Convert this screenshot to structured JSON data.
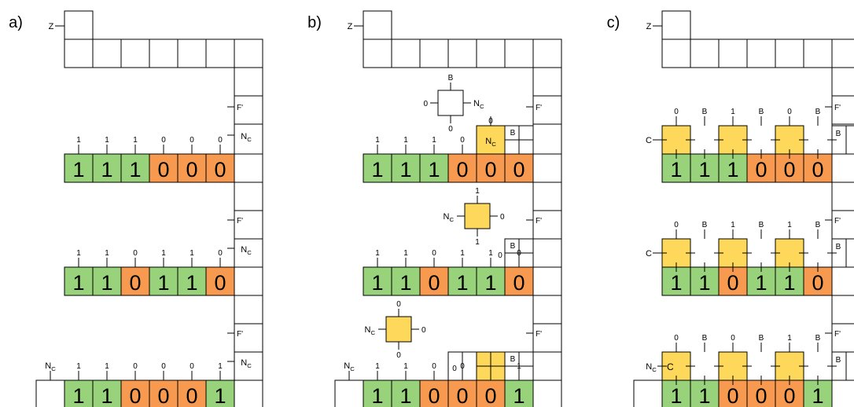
{
  "colors": {
    "green": "#98d27b",
    "orange": "#f79a4f",
    "yellow": "#fdd85a",
    "line": "#000000"
  },
  "panels": [
    {
      "label": "a)",
      "seed_label": "Z",
      "rows": [
        {
          "bits": [
            "1",
            "1",
            "1",
            "0",
            "0",
            "0"
          ],
          "top_labels": [
            "1",
            "1",
            "1",
            "0",
            "0",
            "0"
          ],
          "f_label": "F'",
          "nc_label": "N",
          "nc_sub": "C",
          "left_label": ""
        },
        {
          "bits": [
            "1",
            "1",
            "0",
            "1",
            "1",
            "0"
          ],
          "top_labels": [
            "1",
            "1",
            "0",
            "1",
            "1",
            "0"
          ],
          "f_label": "F'",
          "nc_label": "N",
          "nc_sub": "C",
          "left_label": ""
        },
        {
          "bits": [
            "1",
            "1",
            "0",
            "0",
            "0",
            "1"
          ],
          "top_labels": [
            "1",
            "1",
            "0",
            "0",
            "0",
            "1"
          ],
          "f_label": "F'",
          "nc_label": "N",
          "nc_sub": "C",
          "left_label": "N",
          "left_sub": "C"
        }
      ]
    },
    {
      "label": "b)",
      "seed_label": "Z",
      "rows": [
        {
          "bits": [
            "1",
            "1",
            "1",
            "0",
            "0",
            "0"
          ],
          "top_labels": [
            "1",
            "1",
            "1",
            "0",
            "N",
            "B"
          ],
          "f_label": "F'"
        },
        {
          "bits": [
            "1",
            "1",
            "0",
            "1",
            "1",
            "0"
          ],
          "top_labels": [
            "1",
            "1",
            "0",
            "1",
            "1",
            "0",
            "B"
          ],
          "f_label": "F'"
        },
        {
          "bits": [
            "1",
            "1",
            "0",
            "0",
            "0",
            "1"
          ],
          "top_labels": [
            "1",
            "1",
            "0",
            "0",
            "B",
            "1",
            "B"
          ],
          "f_label": "F'",
          "left_label": "N",
          "left_sub": "C"
        }
      ],
      "legend_tiles": [
        {
          "top": "B",
          "left": "0",
          "right": "N",
          "right_sub": "C",
          "bottom": "0",
          "fill": "white"
        },
        {
          "top": "1",
          "left": "N",
          "left_sub": "C",
          "right": "0",
          "bottom": "1",
          "fill": "yellow"
        },
        {
          "top": "0",
          "left": "N",
          "left_sub": "C",
          "right": "0",
          "bottom": "0",
          "fill": "yellow"
        }
      ]
    },
    {
      "label": "c)",
      "seed_label": "Z",
      "rows": [
        {
          "bits": [
            "1",
            "1",
            "1",
            "0",
            "0",
            "0"
          ],
          "top_labels": [
            "0",
            "B",
            "1",
            "B",
            "0",
            "B"
          ],
          "f_label": "F'",
          "left_label": "C"
        },
        {
          "bits": [
            "1",
            "1",
            "0",
            "1",
            "1",
            "0"
          ],
          "top_labels": [
            "0",
            "B",
            "1",
            "B",
            "1",
            "B"
          ],
          "f_label": "F'",
          "left_label": "C"
        },
        {
          "bits": [
            "1",
            "1",
            "0",
            "0",
            "0",
            "1"
          ],
          "top_labels": [
            "0",
            "B",
            "0",
            "B",
            "1",
            "B"
          ],
          "f_label": "F'",
          "left_label": "N",
          "left_sub": "C",
          "first_tile_label": "C"
        }
      ]
    }
  ]
}
